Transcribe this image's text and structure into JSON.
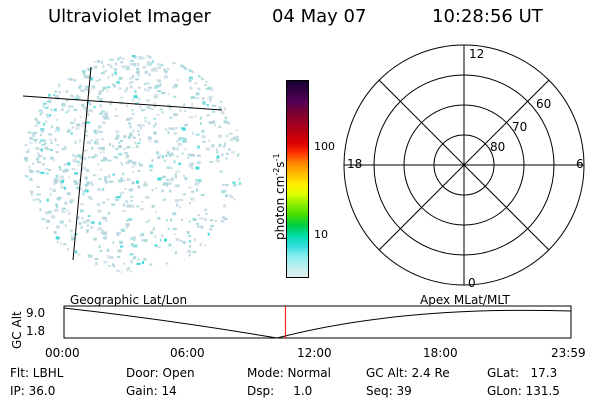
{
  "header": {
    "title": "Ultraviolet Imager",
    "date": "04 May 07",
    "time": "10:28:56 UT"
  },
  "colorbar": {
    "label": "photon cm⁻²s⁻¹",
    "label_base": "photon cm",
    "label_sup1": "-2",
    "label_s": "s",
    "label_sup2": "-1",
    "tick_100": "100",
    "tick_10": "10",
    "colors_top_to_bottom": [
      "#1a0033",
      "#330044",
      "#550055",
      "#770033",
      "#990022",
      "#bb0011",
      "#dd0000",
      "#ff3300",
      "#ff8800",
      "#ffbb00",
      "#ffee00",
      "#ddff00",
      "#88ee00",
      "#44dd00",
      "#00cc44",
      "#00ddaa",
      "#33dddd",
      "#88eeee",
      "#bbeeee",
      "#e4eeee"
    ]
  },
  "polar_plot": {
    "mlt_labels": {
      "top": "12",
      "left": "18",
      "right": "6",
      "bottom": "0"
    },
    "lat_labels": [
      "60",
      "70",
      "80"
    ]
  },
  "timeline": {
    "left_label": "Geographic Lat/Lon",
    "right_label": "Apex MLat/MLT",
    "y_axis_title": "GC Alt",
    "y_ticks": [
      "9.0",
      "1.8"
    ],
    "x_ticks": [
      "00:00",
      "06:00",
      "12:00",
      "18:00",
      "23:59"
    ],
    "current_time_fraction": 0.4367,
    "marker_color": "#ff0000"
  },
  "info": {
    "flt": "Flt: LBHL",
    "ip": "IP: 36.0",
    "door": "Door: Open",
    "gain": "Gain: 14",
    "mode": "Mode: Normal",
    "dsp": "Dsp:     1.0",
    "gc_alt": "GC Alt: 2.4 Re",
    "seq": "Seq: 39",
    "glat": "GLat:   17.3",
    "glon": "GLon: 131.5"
  }
}
